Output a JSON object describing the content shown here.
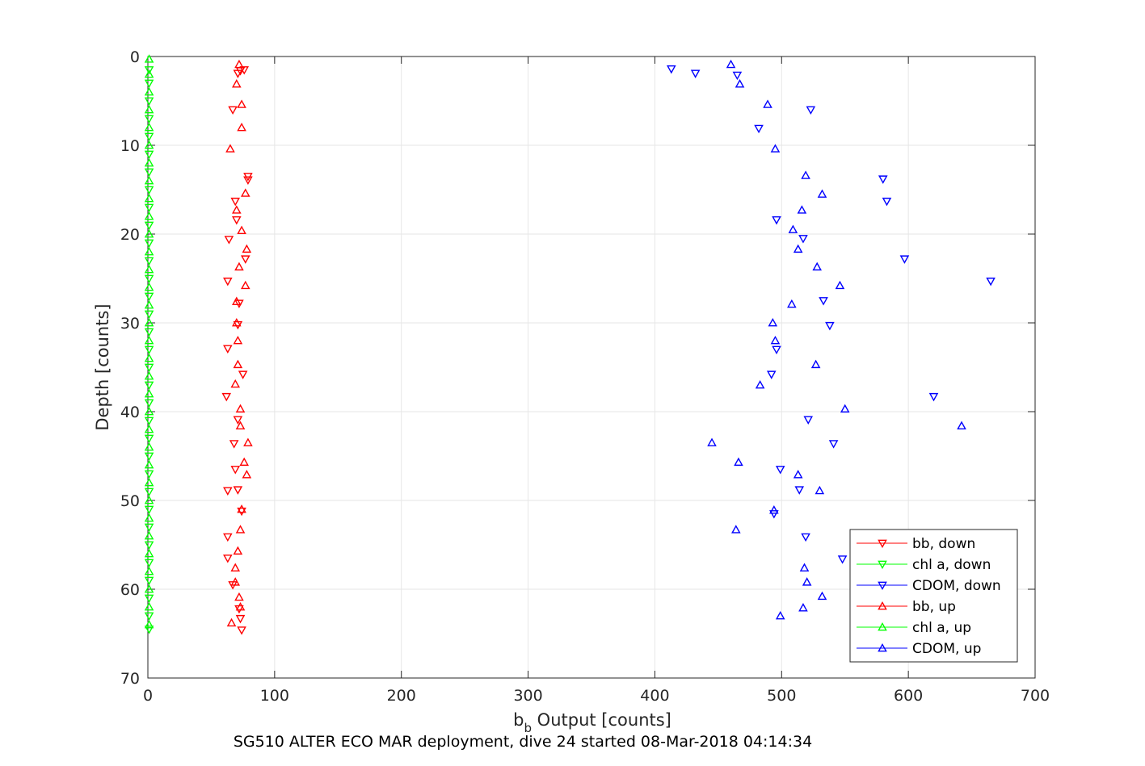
{
  "chart_data": {
    "type": "scatter",
    "xlabel_main": "b",
    "xlabel_sub": "b",
    "xlabel_rest": " Output [counts]",
    "ylabel": "Depth [counts]",
    "title": "SG510 ALTER ECO MAR deployment, dive 24 started 08-Mar-2018 04:14:34",
    "xlim": [
      0,
      700
    ],
    "ylim": [
      0,
      70
    ],
    "y_reversed": true,
    "grid": true,
    "legend_position": "bottom-right",
    "x_ticks": [
      "0",
      "100",
      "200",
      "300",
      "400",
      "500",
      "600",
      "700"
    ],
    "y_ticks": [
      "0",
      "10",
      "20",
      "30",
      "40",
      "50",
      "60",
      "70"
    ],
    "series": [
      {
        "name": "bb, down",
        "color": "#ff0000",
        "marker": "triangle-down",
        "points": [
          [
            71,
            1.9
          ],
          [
            73,
            1.6
          ],
          [
            76,
            1.5
          ],
          [
            67,
            6.0
          ],
          [
            79,
            13.5
          ],
          [
            79,
            13.9
          ],
          [
            69,
            16.3
          ],
          [
            70,
            18.4
          ],
          [
            64,
            20.6
          ],
          [
            77,
            22.8
          ],
          [
            63,
            25.3
          ],
          [
            72,
            27.8
          ],
          [
            71,
            30.2
          ],
          [
            63,
            32.9
          ],
          [
            75,
            35.8
          ],
          [
            62,
            38.3
          ],
          [
            71,
            40.9
          ],
          [
            68,
            43.6
          ],
          [
            69,
            46.5
          ],
          [
            71,
            48.8
          ],
          [
            63,
            48.9
          ],
          [
            74,
            51.2
          ],
          [
            63,
            54.1
          ],
          [
            63,
            56.5
          ],
          [
            67,
            59.5
          ],
          [
            72,
            62.2
          ],
          [
            73,
            63.3
          ],
          [
            74,
            64.6
          ]
        ]
      },
      {
        "name": "chl a, down",
        "color": "#00ff00",
        "marker": "triangle-down",
        "points": [
          [
            1,
            1.5
          ],
          [
            1,
            3
          ],
          [
            1,
            5
          ],
          [
            1,
            7
          ],
          [
            1,
            9
          ],
          [
            1,
            11
          ],
          [
            1,
            13
          ],
          [
            1,
            15
          ],
          [
            1,
            17
          ],
          [
            1,
            19
          ],
          [
            1,
            21
          ],
          [
            1,
            23
          ],
          [
            1,
            25
          ],
          [
            1,
            27
          ],
          [
            1,
            29
          ],
          [
            1,
            31
          ],
          [
            1,
            33
          ],
          [
            1,
            35
          ],
          [
            1,
            37
          ],
          [
            1,
            39
          ],
          [
            1,
            41
          ],
          [
            1,
            43
          ],
          [
            1,
            45
          ],
          [
            1,
            47
          ],
          [
            1,
            49
          ],
          [
            1,
            51
          ],
          [
            1,
            53
          ],
          [
            1,
            55
          ],
          [
            1,
            57
          ],
          [
            1,
            59
          ],
          [
            1,
            61
          ],
          [
            1,
            63
          ],
          [
            1,
            64.5
          ]
        ]
      },
      {
        "name": "CDOM, down",
        "color": "#0000ff",
        "marker": "triangle-down",
        "points": [
          [
            413,
            1.4
          ],
          [
            432,
            1.9
          ],
          [
            465,
            2.1
          ],
          [
            523,
            6.0
          ],
          [
            482,
            8.1
          ],
          [
            580,
            13.8
          ],
          [
            583,
            16.3
          ],
          [
            496,
            18.4
          ],
          [
            517,
            20.5
          ],
          [
            597,
            22.8
          ],
          [
            665,
            25.3
          ],
          [
            533,
            27.5
          ],
          [
            538,
            30.3
          ],
          [
            496,
            33.0
          ],
          [
            492,
            35.8
          ],
          [
            620,
            38.3
          ],
          [
            521,
            40.9
          ],
          [
            541,
            43.6
          ],
          [
            499,
            46.5
          ],
          [
            514,
            48.8
          ],
          [
            494,
            51.5
          ],
          [
            519,
            54.1
          ],
          [
            548,
            56.6
          ]
        ]
      },
      {
        "name": "bb, up",
        "color": "#ff0000",
        "marker": "triangle-up",
        "points": [
          [
            72,
            0.9
          ],
          [
            70,
            3.1
          ],
          [
            74,
            5.4
          ],
          [
            74,
            8.0
          ],
          [
            65,
            10.4
          ],
          [
            77,
            15.4
          ],
          [
            70,
            17.3
          ],
          [
            74,
            19.6
          ],
          [
            78,
            21.7
          ],
          [
            72,
            23.7
          ],
          [
            77,
            25.8
          ],
          [
            70,
            27.6
          ],
          [
            70,
            30.0
          ],
          [
            71,
            32.0
          ],
          [
            71,
            34.7
          ],
          [
            69,
            36.9
          ],
          [
            73,
            39.7
          ],
          [
            73,
            41.6
          ],
          [
            79,
            43.5
          ],
          [
            76,
            45.7
          ],
          [
            78,
            47.1
          ],
          [
            74,
            51.0
          ],
          [
            73,
            53.3
          ],
          [
            71,
            55.7
          ],
          [
            69,
            57.6
          ],
          [
            69,
            59.2
          ],
          [
            72,
            60.9
          ],
          [
            73,
            62.0
          ],
          [
            66,
            63.8
          ]
        ]
      },
      {
        "name": "chl a, up",
        "color": "#00ff00",
        "marker": "triangle-up",
        "points": [
          [
            1,
            0.3
          ],
          [
            1,
            2
          ],
          [
            1,
            4
          ],
          [
            1,
            6
          ],
          [
            1,
            8
          ],
          [
            1,
            10
          ],
          [
            1,
            12
          ],
          [
            1,
            14
          ],
          [
            1,
            16
          ],
          [
            1,
            18
          ],
          [
            1,
            20
          ],
          [
            1,
            22
          ],
          [
            1,
            24
          ],
          [
            1,
            26
          ],
          [
            1,
            28
          ],
          [
            1,
            30
          ],
          [
            1,
            32
          ],
          [
            1,
            34
          ],
          [
            1,
            36
          ],
          [
            1,
            38
          ],
          [
            1,
            40
          ],
          [
            1,
            42
          ],
          [
            1,
            44
          ],
          [
            1,
            46
          ],
          [
            1,
            48
          ],
          [
            1,
            50
          ],
          [
            1,
            52
          ],
          [
            1,
            54
          ],
          [
            1,
            56
          ],
          [
            1,
            58
          ],
          [
            1,
            60
          ],
          [
            1,
            62
          ],
          [
            1,
            64
          ]
        ]
      },
      {
        "name": "CDOM, up",
        "color": "#0000ff",
        "marker": "triangle-up",
        "points": [
          [
            460,
            0.9
          ],
          [
            467,
            3.1
          ],
          [
            489,
            5.4
          ],
          [
            495,
            10.4
          ],
          [
            519,
            13.4
          ],
          [
            532,
            15.5
          ],
          [
            516,
            17.3
          ],
          [
            509,
            19.5
          ],
          [
            513,
            21.7
          ],
          [
            528,
            23.7
          ],
          [
            546,
            25.8
          ],
          [
            508,
            27.9
          ],
          [
            493,
            30.0
          ],
          [
            495,
            32.0
          ],
          [
            527,
            34.7
          ],
          [
            483,
            37.0
          ],
          [
            550,
            39.7
          ],
          [
            642,
            41.6
          ],
          [
            445,
            43.5
          ],
          [
            466,
            45.7
          ],
          [
            513,
            47.1
          ],
          [
            530,
            48.9
          ],
          [
            494,
            51.1
          ],
          [
            464,
            53.3
          ],
          [
            518,
            57.6
          ],
          [
            520,
            59.2
          ],
          [
            532,
            60.8
          ],
          [
            517,
            62.1
          ],
          [
            499,
            63.0
          ]
        ]
      }
    ]
  }
}
